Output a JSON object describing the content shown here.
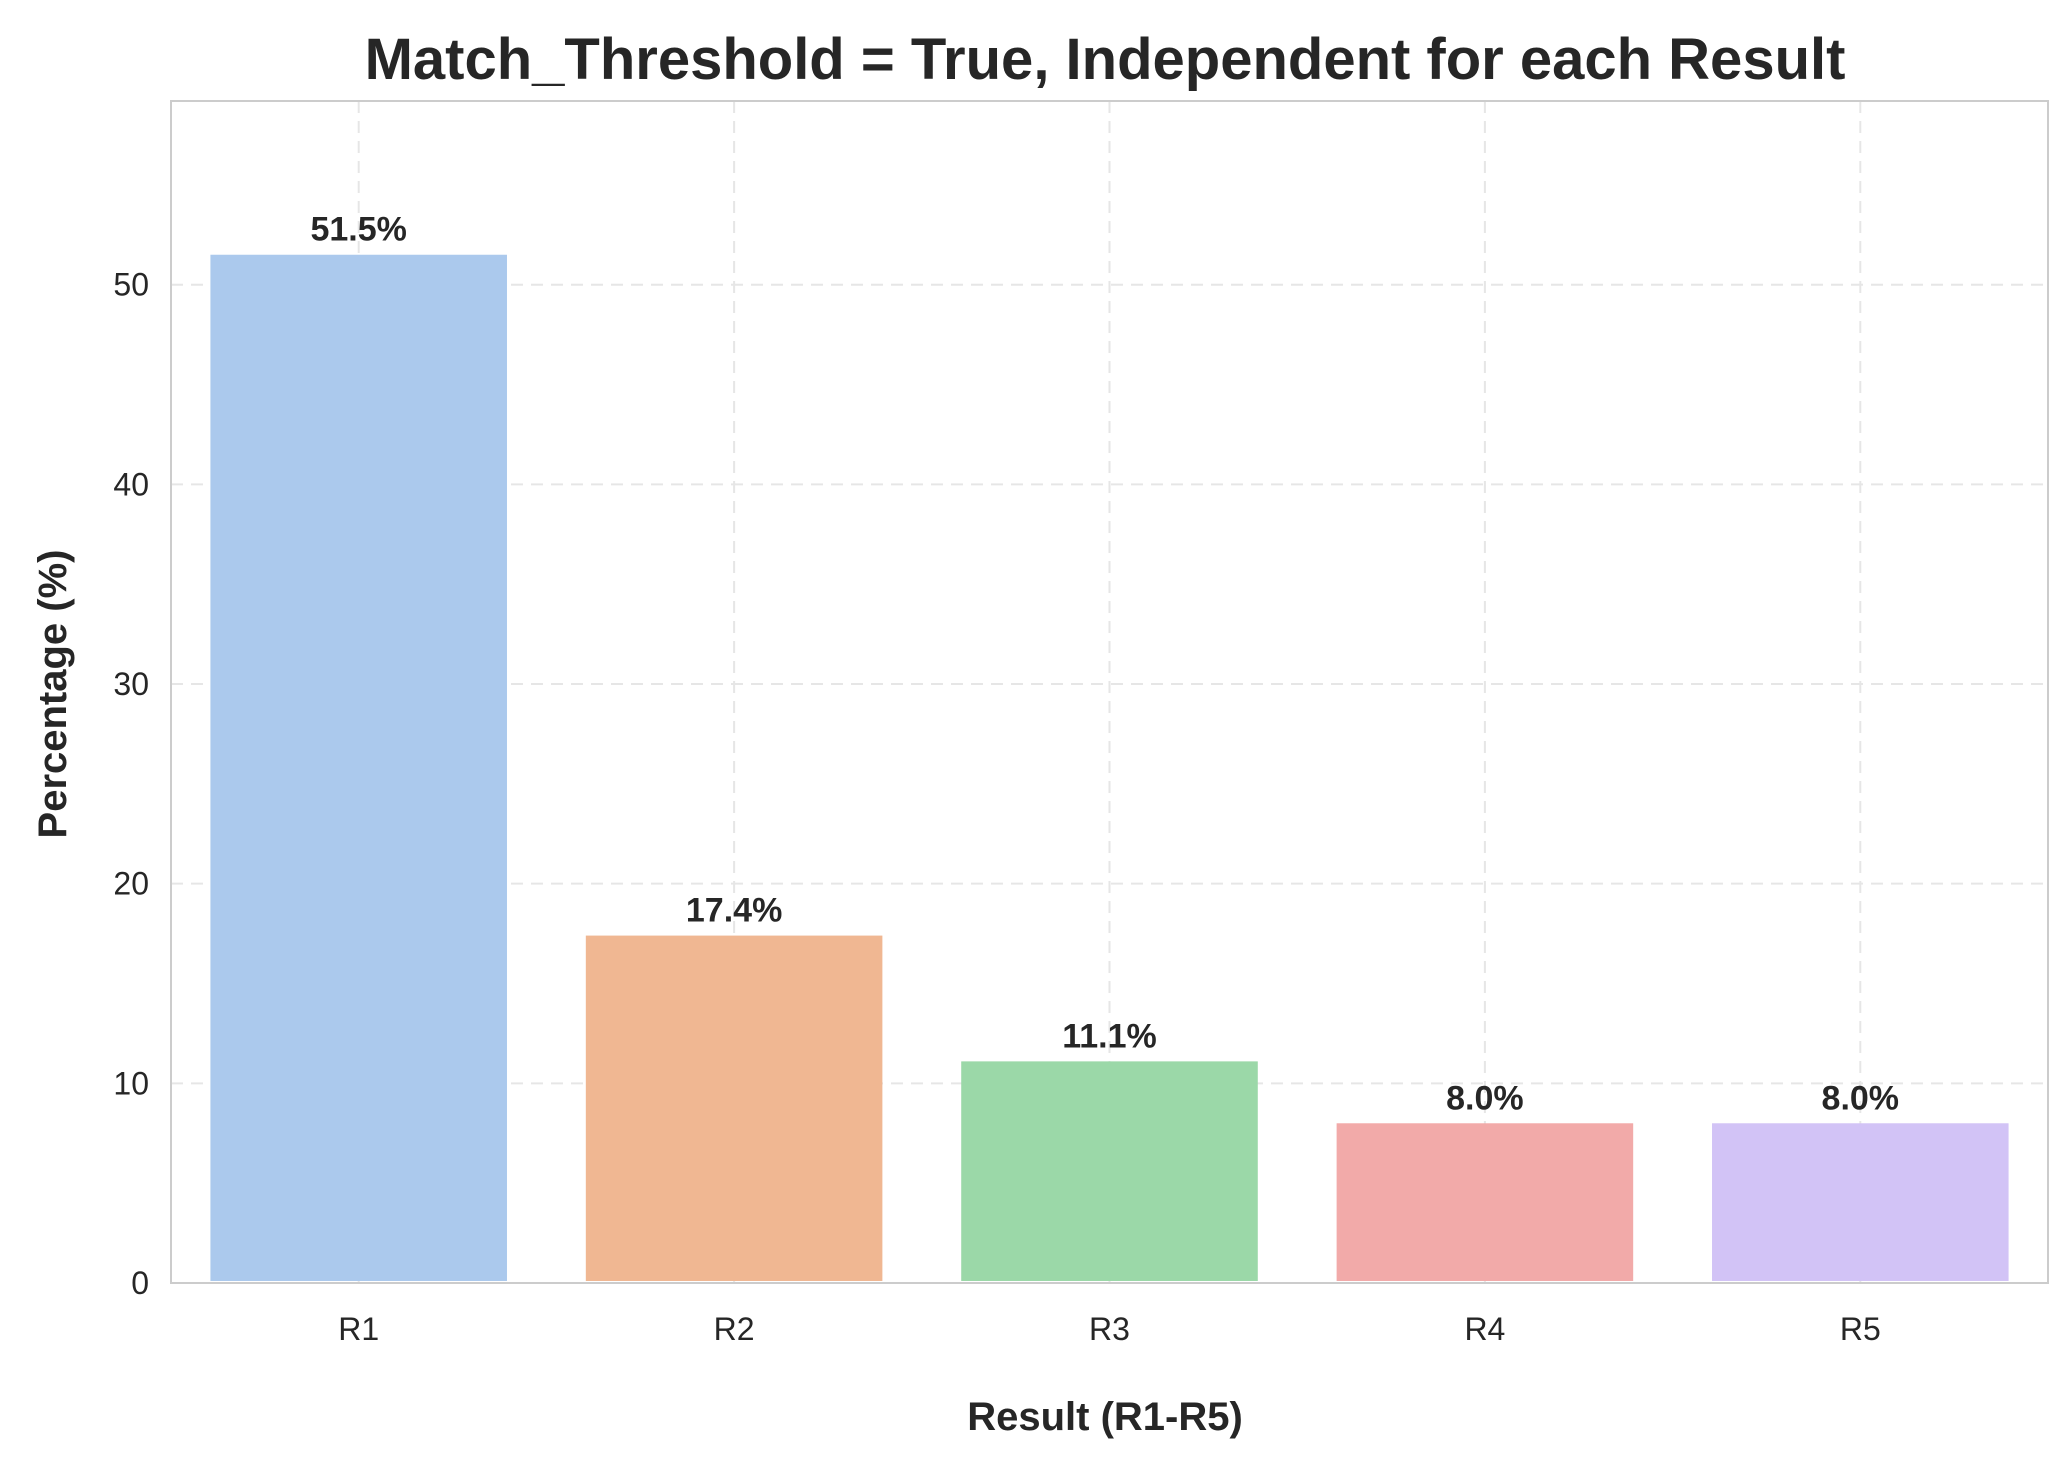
{
  "chart_data": {
    "type": "bar",
    "title": "Match_Threshold = True, Independent for each Result",
    "xlabel": "Result (R1-R5)",
    "ylabel": "Percentage (%)",
    "categories": [
      "R1",
      "R2",
      "R3",
      "R4",
      "R5"
    ],
    "values": [
      51.5,
      17.4,
      11.1,
      8.0,
      8.0
    ],
    "data_labels": [
      "51.5%",
      "17.4%",
      "11.1%",
      "8.0%",
      "8.0%"
    ],
    "colors": [
      "#abc9ed",
      "#f0b792",
      "#9bd8a8",
      "#f2aaa9",
      "#d2c3f6"
    ],
    "ylim": [
      0,
      59.2
    ],
    "yticks": [
      0,
      10,
      20,
      30,
      40,
      50
    ],
    "ytick_labels": [
      "0",
      "10",
      "20",
      "30",
      "40",
      "50"
    ],
    "grid": true,
    "legend": "none"
  }
}
